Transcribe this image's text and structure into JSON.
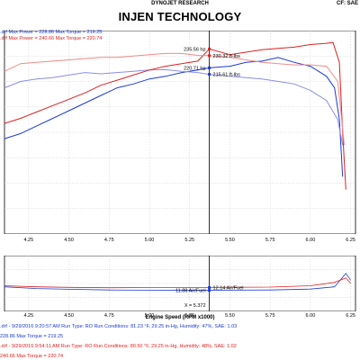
{
  "header": {
    "company": "DYNOJET RESEARCH",
    "title": "INJEN TECHNOLOGY",
    "cf": "CF: SAE"
  },
  "legend": {
    "line1": ".drf Max Power = 228.86   Max Torque = 219.25",
    "line2": ".drf Max Power = 240.66   Max Torque = 220.74"
  },
  "footer": {
    "run1_info": ".drf - 9/29/2016 9:20:57 AM  Run Type: RO  Run Conditions: 81.23 °F, 29.25 in-Hg,  Humidity: 47%, SAE: 1.03",
    "run1_values": "228.86  Max Torque = 219.25",
    "run2_info": ".drf - 9/29/2016 9:54:11 AM  Run Type: RO  Run Conditions: 80.50 °F, 29.25 in-Hg,  Humidity: 48%, SAE: 1.02",
    "run2_values": "240.66  Max Torque = 220.74"
  },
  "colors": {
    "run1": "#1a3ad8",
    "run2": "#e02020",
    "run1_light": "#8c8ce8",
    "run2_light": "#f08a8a"
  },
  "chart_data": [
    {
      "type": "line",
      "xlabel": "Engine Speed (RPM x1000)",
      "ylabel": "",
      "xlim": [
        4.1,
        6.28
      ],
      "ylim": [
        90,
        250
      ],
      "grid": true,
      "x_ticks": [
        4.25,
        4.5,
        4.75,
        5.0,
        5.25,
        5.5,
        5.75,
        6.0,
        6.25
      ],
      "x_tick_labels": [
        "4.25",
        "4.50",
        "4.75",
        "5.00",
        "5.25",
        "5.50",
        "5.75",
        "6.00",
        "6.25"
      ],
      "cursor_x": 5.372,
      "series": [
        {
          "role": "power-run1",
          "color": "#1a3ad8",
          "points": [
            [
              4.1,
              165
            ],
            [
              4.2,
              169
            ],
            [
              4.3,
              175
            ],
            [
              4.4,
              181
            ],
            [
              4.5,
              187
            ],
            [
              4.6,
              193
            ],
            [
              4.7,
              199
            ],
            [
              4.8,
              205
            ],
            [
              4.9,
              208
            ],
            [
              5.0,
              212
            ],
            [
              5.1,
              214
            ],
            [
              5.2,
              217
            ],
            [
              5.3,
              219
            ],
            [
              5.372,
              220.71
            ],
            [
              5.5,
              222
            ],
            [
              5.6,
              225
            ],
            [
              5.7,
              226
            ],
            [
              5.8,
              228.86
            ],
            [
              5.9,
              225
            ],
            [
              6.0,
              222
            ],
            [
              6.1,
              214
            ],
            [
              6.15,
              205
            ],
            [
              6.18,
              180
            ],
            [
              6.2,
              135
            ]
          ]
        },
        {
          "role": "torque-run1",
          "color": "#8c8ce8",
          "points": [
            [
              4.1,
              205
            ],
            [
              4.2,
              210
            ],
            [
              4.3,
              212
            ],
            [
              4.4,
              213
            ],
            [
              4.5,
              215
            ],
            [
              4.6,
              217
            ],
            [
              4.7,
              216
            ],
            [
              4.8,
              217
            ],
            [
              4.9,
              218
            ],
            [
              5.0,
              219
            ],
            [
              5.1,
              219.25
            ],
            [
              5.2,
              218
            ],
            [
              5.3,
              217
            ],
            [
              5.372,
              215.61
            ],
            [
              5.5,
              214
            ],
            [
              5.6,
              213
            ],
            [
              5.7,
              212
            ],
            [
              5.8,
              210
            ],
            [
              5.9,
              208
            ],
            [
              6.0,
              203
            ],
            [
              6.1,
              195
            ],
            [
              6.17,
              180
            ],
            [
              6.2,
              160
            ]
          ]
        },
        {
          "role": "power-run2",
          "color": "#e02020",
          "points": [
            [
              4.1,
              177
            ],
            [
              4.2,
              181
            ],
            [
              4.3,
              186
            ],
            [
              4.4,
              191
            ],
            [
              4.5,
              196
            ],
            [
              4.6,
              201
            ],
            [
              4.7,
              207
            ],
            [
              4.8,
              211
            ],
            [
              4.9,
              215
            ],
            [
              5.0,
              219
            ],
            [
              5.1,
              222
            ],
            [
              5.2,
              224
            ],
            [
              5.3,
              226
            ],
            [
              5.372,
              235.56
            ],
            [
              5.5,
              231
            ],
            [
              5.6,
              233
            ],
            [
              5.7,
              235
            ],
            [
              5.8,
              236
            ],
            [
              5.9,
              237
            ],
            [
              6.0,
              239
            ],
            [
              6.1,
              240
            ],
            [
              6.14,
              240.66
            ],
            [
              6.18,
              225
            ],
            [
              6.2,
              170
            ],
            [
              6.22,
              125
            ]
          ]
        },
        {
          "role": "torque-run2",
          "color": "#f08a8a",
          "points": [
            [
              4.1,
              218
            ],
            [
              4.2,
              224
            ],
            [
              4.3,
              225
            ],
            [
              4.4,
              226
            ],
            [
              4.5,
              227
            ],
            [
              4.6,
              228
            ],
            [
              4.7,
              229
            ],
            [
              4.8,
              229
            ],
            [
              4.9,
              230
            ],
            [
              5.0,
              231
            ],
            [
              5.1,
              232
            ],
            [
              5.2,
              232
            ],
            [
              5.3,
              230.5
            ],
            [
              5.372,
              230.32
            ],
            [
              5.5,
              229
            ],
            [
              5.6,
              227
            ],
            [
              5.7,
              225
            ],
            [
              5.8,
              224
            ],
            [
              5.9,
              223
            ],
            [
              6.0,
              223
            ],
            [
              6.1,
              222
            ],
            [
              6.17,
              210
            ],
            [
              6.21,
              160
            ]
          ]
        }
      ],
      "annotations": [
        {
          "text": "230.32 ft-lbs",
          "x": 5.372,
          "y": 230.32,
          "color": "#e02020",
          "side": "right"
        },
        {
          "text": "235.56 hp",
          "x": 5.372,
          "y": 235.56,
          "color": "#e02020",
          "side": "left"
        },
        {
          "text": "215.61 ft-lbs",
          "x": 5.372,
          "y": 215.61,
          "color": "#1a3ad8",
          "side": "right"
        },
        {
          "text": "220.71 hp",
          "x": 5.372,
          "y": 220.71,
          "color": "#1a3ad8",
          "side": "left"
        }
      ]
    },
    {
      "type": "line",
      "xlim": [
        4.1,
        6.28
      ],
      "ylim": [
        10,
        15
      ],
      "cursor_x": 5.372,
      "cursor_readout": "X = 5.372",
      "series": [
        {
          "role": "afr-run1",
          "color": "#1a3ad8",
          "points": [
            [
              4.1,
              12.2
            ],
            [
              4.3,
              12.05
            ],
            [
              4.5,
              11.98
            ],
            [
              4.75,
              11.92
            ],
            [
              5.0,
              11.9
            ],
            [
              5.25,
              11.88
            ],
            [
              5.372,
              11.88
            ],
            [
              5.5,
              11.9
            ],
            [
              5.75,
              11.92
            ],
            [
              6.0,
              12.0
            ],
            [
              6.15,
              12.2
            ],
            [
              6.22,
              13.4
            ],
            [
              6.25,
              12.8
            ]
          ]
        },
        {
          "role": "afr-run2",
          "color": "#e02020",
          "points": [
            [
              4.1,
              12.3
            ],
            [
              4.3,
              12.2
            ],
            [
              4.5,
              12.15
            ],
            [
              4.75,
              12.12
            ],
            [
              5.0,
              12.14
            ],
            [
              5.25,
              12.14
            ],
            [
              5.372,
              12.14
            ],
            [
              5.5,
              12.16
            ],
            [
              5.75,
              12.18
            ],
            [
              6.0,
              12.3
            ],
            [
              6.15,
              12.6
            ],
            [
              6.22,
              13.0
            ],
            [
              6.25,
              12.5
            ]
          ]
        }
      ],
      "annotations": [
        {
          "text": "11.88 Air/Fuel",
          "x": 5.372,
          "y": 11.88,
          "color": "#000000",
          "side": "left"
        },
        {
          "text": "12.14 Air/Fuel",
          "x": 5.372,
          "y": 12.14,
          "color": "#000000",
          "side": "right"
        }
      ]
    }
  ]
}
